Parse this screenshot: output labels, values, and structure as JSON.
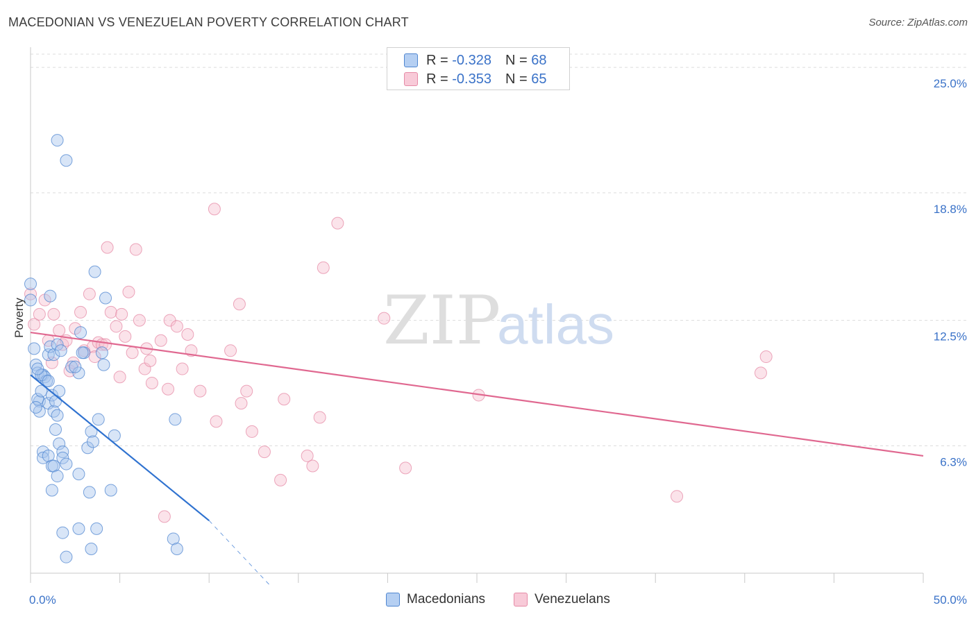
{
  "title": "MACEDONIAN VS VENEZUELAN POVERTY CORRELATION CHART",
  "source": "Source: ZipAtlas.com",
  "watermark": {
    "zip": "ZIP",
    "atlas": "atlas"
  },
  "colors": {
    "macedonian_fill": "#a9c6ee",
    "macedonian_stroke": "#4f86d0",
    "macedonian_line": "#2f72d0",
    "venezuelan_fill": "#f6c0d0",
    "venezuelan_stroke": "#e68aa6",
    "venezuelan_line": "#e06890",
    "axis_label": "#3a72c8",
    "grid": "#dcdcdc"
  },
  "legend": {
    "macedonian": {
      "r_label": "R = ",
      "r_value": "-0.328",
      "n_label": "N = ",
      "n_value": "68"
    },
    "venezuelan": {
      "r_label": "R = ",
      "r_value": "-0.353",
      "n_label": "N = ",
      "n_value": "65"
    }
  },
  "bottom_legend": {
    "macedonians": "Macedonians",
    "venezuelans": "Venezuelans"
  },
  "chart_data": {
    "type": "scatter",
    "title": "MACEDONIAN VS VENEZUELAN POVERTY CORRELATION CHART",
    "xlabel": "",
    "ylabel": "Poverty",
    "xlim": [
      0,
      50
    ],
    "ylim": [
      0,
      26
    ],
    "x_tick_labels": [
      {
        "value": 0,
        "label": "0.0%"
      },
      {
        "value": 50,
        "label": "50.0%"
      }
    ],
    "y_tick_labels": [
      {
        "value": 6.3,
        "label": "6.3%"
      },
      {
        "value": 12.5,
        "label": "12.5%"
      },
      {
        "value": 18.8,
        "label": "18.8%"
      },
      {
        "value": 25.0,
        "label": "25.0%"
      }
    ],
    "series": [
      {
        "name": "Macedonians",
        "r": -0.328,
        "n": 68,
        "trend": {
          "x0": 0,
          "y0": 9.8,
          "x1": 10,
          "y1": 2.6,
          "dash_x1": 13.5,
          "dash_y1": 0.0
        },
        "points": [
          [
            0,
            14.3
          ],
          [
            0,
            13.5
          ],
          [
            0.2,
            11.1
          ],
          [
            0.3,
            10.3
          ],
          [
            0.4,
            9.9
          ],
          [
            0.5,
            8.5
          ],
          [
            0.4,
            8.6
          ],
          [
            0.5,
            8.0
          ],
          [
            0.6,
            9.0
          ],
          [
            0.7,
            9.8
          ],
          [
            0.8,
            9.7
          ],
          [
            0.9,
            9.5
          ],
          [
            1.0,
            10.8
          ],
          [
            1.1,
            11.2
          ],
          [
            1.0,
            8.4
          ],
          [
            1.2,
            8.8
          ],
          [
            1.3,
            8.0
          ],
          [
            1.1,
            13.7
          ],
          [
            1.3,
            10.8
          ],
          [
            1.5,
            11.3
          ],
          [
            1.7,
            11.0
          ],
          [
            1.6,
            9.0
          ],
          [
            1.5,
            7.8
          ],
          [
            1.4,
            7.1
          ],
          [
            1.6,
            6.4
          ],
          [
            1.8,
            6.0
          ],
          [
            0.7,
            6.0
          ],
          [
            0.7,
            5.7
          ],
          [
            1.0,
            5.8
          ],
          [
            1.2,
            5.3
          ],
          [
            1.3,
            5.3
          ],
          [
            1.8,
            5.7
          ],
          [
            2.0,
            5.4
          ],
          [
            1.5,
            4.8
          ],
          [
            1.2,
            4.1
          ],
          [
            1.5,
            21.4
          ],
          [
            2.0,
            20.4
          ],
          [
            2.3,
            10.2
          ],
          [
            2.7,
            9.9
          ],
          [
            2.8,
            11.9
          ],
          [
            2.7,
            4.9
          ],
          [
            2.5,
            10.2
          ],
          [
            3.0,
            10.9
          ],
          [
            3.2,
            6.2
          ],
          [
            3.4,
            7.0
          ],
          [
            3.5,
            6.5
          ],
          [
            3.6,
            14.9
          ],
          [
            3.8,
            7.6
          ],
          [
            4.0,
            10.9
          ],
          [
            4.1,
            10.3
          ],
          [
            4.2,
            13.6
          ],
          [
            4.5,
            4.1
          ],
          [
            4.7,
            6.8
          ],
          [
            3.3,
            4.0
          ],
          [
            2.7,
            2.2
          ],
          [
            1.8,
            2.0
          ],
          [
            3.7,
            2.2
          ],
          [
            3.4,
            1.2
          ],
          [
            8.0,
            1.7
          ],
          [
            8.1,
            7.6
          ],
          [
            8.2,
            1.2
          ],
          [
            2.0,
            0.8
          ],
          [
            0.3,
            8.2
          ],
          [
            0.6,
            9.8
          ],
          [
            1.0,
            9.5
          ],
          [
            0.4,
            10.1
          ],
          [
            1.4,
            8.5
          ],
          [
            2.9,
            10.9
          ]
        ]
      },
      {
        "name": "Venezuelans",
        "r": -0.353,
        "n": 65,
        "trend": {
          "x0": 0,
          "y0": 11.9,
          "x1": 50,
          "y1": 5.8
        },
        "points": [
          [
            0,
            13.8
          ],
          [
            0.2,
            12.3
          ],
          [
            0.5,
            12.8
          ],
          [
            0.8,
            13.5
          ],
          [
            1.0,
            11.5
          ],
          [
            1.2,
            10.4
          ],
          [
            1.3,
            12.8
          ],
          [
            1.6,
            12.0
          ],
          [
            1.8,
            11.3
          ],
          [
            2.0,
            11.5
          ],
          [
            2.2,
            10.0
          ],
          [
            2.4,
            10.4
          ],
          [
            2.5,
            12.1
          ],
          [
            2.8,
            12.9
          ],
          [
            3.0,
            11.0
          ],
          [
            3.3,
            13.8
          ],
          [
            3.5,
            11.2
          ],
          [
            3.6,
            10.7
          ],
          [
            3.8,
            11.4
          ],
          [
            4.0,
            11.3
          ],
          [
            4.2,
            11.3
          ],
          [
            4.3,
            16.1
          ],
          [
            4.5,
            12.9
          ],
          [
            4.8,
            12.2
          ],
          [
            5.0,
            9.7
          ],
          [
            5.1,
            12.8
          ],
          [
            5.3,
            11.7
          ],
          [
            5.5,
            13.9
          ],
          [
            5.7,
            10.9
          ],
          [
            5.9,
            16.0
          ],
          [
            6.1,
            12.5
          ],
          [
            6.4,
            10.1
          ],
          [
            6.5,
            11.1
          ],
          [
            6.7,
            10.5
          ],
          [
            6.8,
            9.4
          ],
          [
            7.3,
            11.5
          ],
          [
            7.7,
            9.1
          ],
          [
            7.8,
            12.5
          ],
          [
            8.2,
            12.2
          ],
          [
            8.5,
            10.1
          ],
          [
            8.8,
            11.8
          ],
          [
            9.0,
            11.0
          ],
          [
            9.5,
            9.0
          ],
          [
            10.3,
            18.0
          ],
          [
            10.4,
            7.5
          ],
          [
            11.2,
            11.0
          ],
          [
            11.7,
            13.3
          ],
          [
            11.8,
            8.4
          ],
          [
            12.1,
            9.0
          ],
          [
            12.4,
            7.0
          ],
          [
            13.1,
            6.0
          ],
          [
            14.0,
            4.6
          ],
          [
            14.2,
            8.6
          ],
          [
            15.5,
            5.8
          ],
          [
            15.8,
            5.3
          ],
          [
            16.2,
            7.7
          ],
          [
            16.4,
            15.1
          ],
          [
            17.2,
            17.3
          ],
          [
            19.8,
            12.6
          ],
          [
            21.0,
            5.2
          ],
          [
            25.1,
            8.8
          ],
          [
            36.2,
            3.8
          ],
          [
            40.9,
            9.9
          ],
          [
            41.2,
            10.7
          ],
          [
            7.5,
            2.8
          ]
        ]
      }
    ]
  }
}
